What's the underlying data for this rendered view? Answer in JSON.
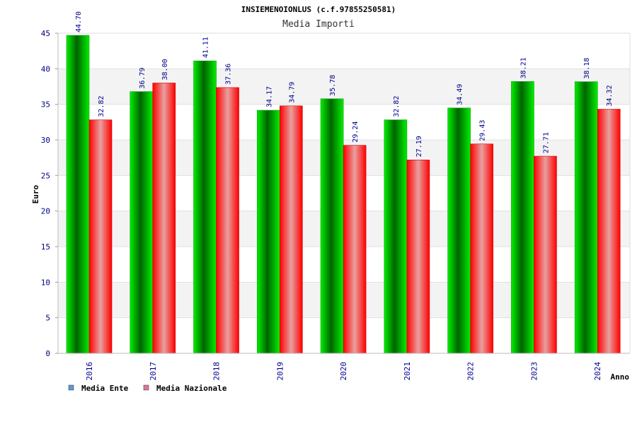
{
  "chart_data": {
    "type": "bar",
    "title": "INSIEMENOIONLUS (c.f.97855250581)",
    "subtitle": "Media Importi",
    "xlabel": "Anno",
    "ylabel": "Euro",
    "ylim": [
      0,
      45
    ],
    "yticks": [
      "0",
      "5",
      "10",
      "15",
      "20",
      "25",
      "30",
      "35",
      "40",
      "45"
    ],
    "grid": true,
    "legend_position": "bottom-left",
    "categories": [
      "2016",
      "2017",
      "2018",
      "2019",
      "2020",
      "2021",
      "2022",
      "2023",
      "2024"
    ],
    "series": [
      {
        "name": "Media Ente",
        "values": [
          44.7,
          36.79,
          41.11,
          34.17,
          35.78,
          32.82,
          34.49,
          38.21,
          38.18
        ],
        "labels": [
          "44.70",
          "36.79",
          "41.11",
          "34.17",
          "35.78",
          "32.82",
          "34.49",
          "38.21",
          "38.18"
        ],
        "color": "#00c000",
        "legend_color": "#5b9bd5"
      },
      {
        "name": "Media Nazionale",
        "values": [
          32.82,
          38.0,
          37.36,
          34.79,
          29.24,
          27.19,
          29.43,
          27.71,
          34.32
        ],
        "labels": [
          "32.82",
          "38.00",
          "37.36",
          "34.79",
          "29.24",
          "27.19",
          "29.43",
          "27.71",
          "34.32"
        ],
        "color": "#ff1a1a",
        "legend_color": "#d9779e"
      }
    ]
  }
}
